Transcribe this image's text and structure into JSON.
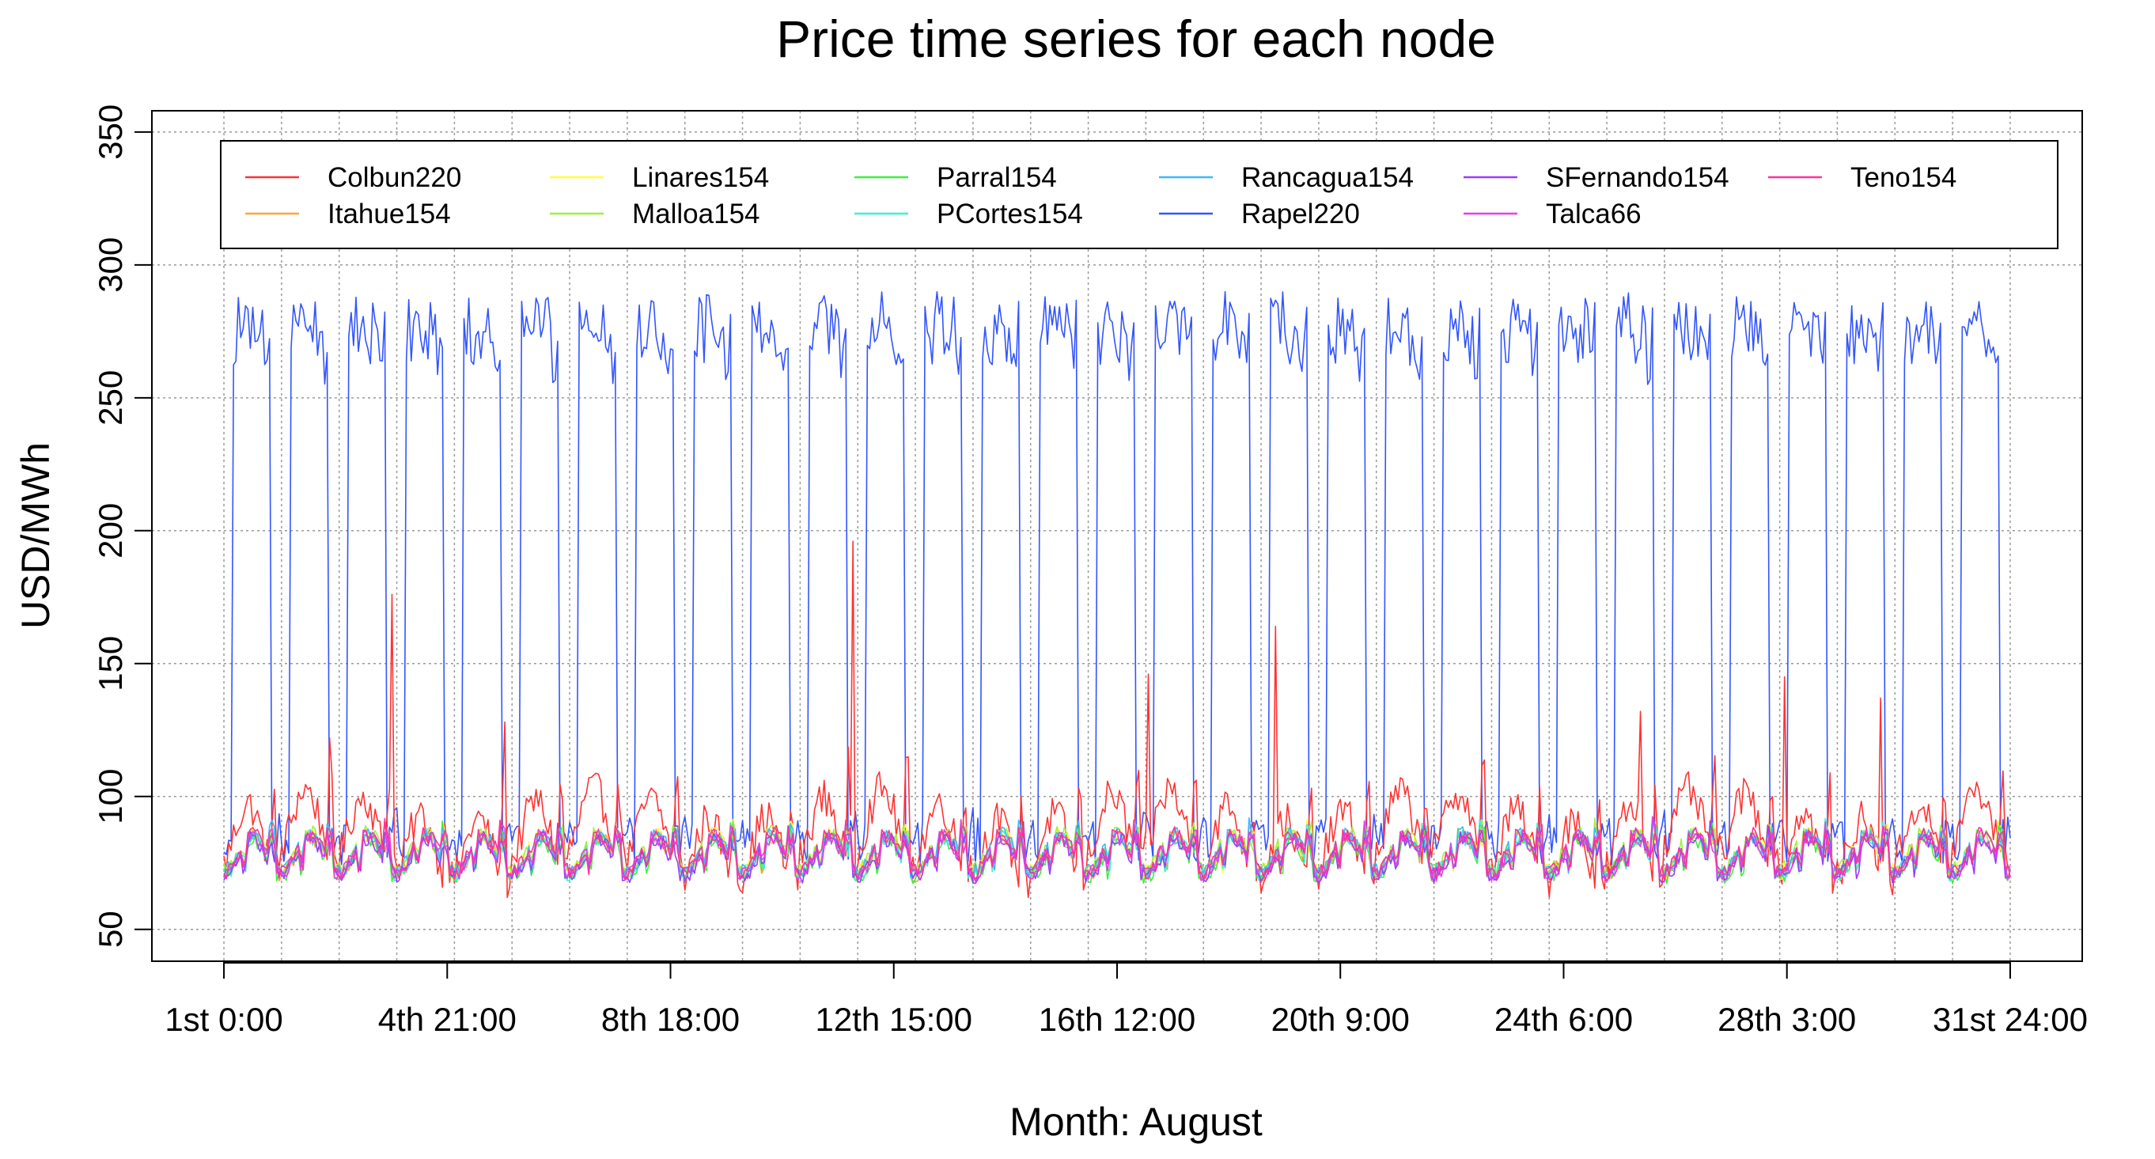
{
  "chart_data": {
    "type": "line",
    "title": "Price time series for each node",
    "xlabel": "Month: August",
    "ylabel": "USD/MWh",
    "ylim": [
      38,
      358
    ],
    "yticks": [
      50,
      100,
      150,
      200,
      250,
      300,
      350
    ],
    "x_range_hours": [
      0,
      744
    ],
    "xlim_hours": [
      -30,
      774
    ],
    "xticks": [
      {
        "hour": 0,
        "label": "1st 0:00"
      },
      {
        "hour": 93,
        "label": "4th 21:00"
      },
      {
        "hour": 186,
        "label": "8th 18:00"
      },
      {
        "hour": 279,
        "label": "12th 15:00"
      },
      {
        "hour": 372,
        "label": "16th 12:00"
      },
      {
        "hour": 465,
        "label": "20th 9:00"
      },
      {
        "hour": 558,
        "label": "24th 6:00"
      },
      {
        "hour": 651,
        "label": "28th 3:00"
      },
      {
        "hour": 744,
        "label": "31st 24:00"
      }
    ],
    "grid": true,
    "legend_position": "top",
    "series": [
      {
        "name": "Colbun220",
        "color": "#FF3333",
        "profile": "high",
        "peaks": {
          "70": 176,
          "262": 196,
          "385": 146,
          "438": 164,
          "117": 128,
          "590": 132,
          "650": 145,
          "690": 137
        }
      },
      {
        "name": "Itahue154",
        "color": "#FFA238",
        "profile": "low"
      },
      {
        "name": "Linares154",
        "color": "#FFFF3B",
        "profile": "low"
      },
      {
        "name": "Malloa154",
        "color": "#A0F03C",
        "profile": "low"
      },
      {
        "name": "Parral154",
        "color": "#3CF03C",
        "profile": "low"
      },
      {
        "name": "PCortes154",
        "color": "#3CF0D6",
        "profile": "low"
      },
      {
        "name": "Rancagua154",
        "color": "#3CB8FF",
        "profile": "low"
      },
      {
        "name": "Rapel220",
        "color": "#3355FF",
        "profile": "rapel"
      },
      {
        "name": "SFernando154",
        "color": "#9A3CFF",
        "profile": "low"
      },
      {
        "name": "Talca66",
        "color": "#E83CE8",
        "profile": "low"
      },
      {
        "name": "Teno154",
        "color": "#FF3399",
        "profile": "low"
      }
    ]
  }
}
